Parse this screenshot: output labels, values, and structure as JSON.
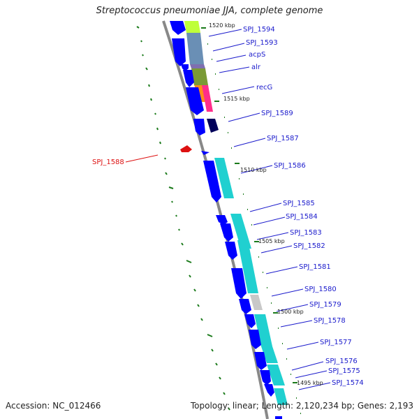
{
  "title": "Streptococcus pneumoniae JJA, complete genome",
  "footer": {
    "accession": "Accession: NC_012466",
    "summary": "Topology: linear; Length: 2,120,234 bp; Genes: 2,193"
  },
  "colors": {
    "backbone": "#888888",
    "gene_blue": "#0000ff",
    "gene_dark_navy": "#00005a",
    "label_blue": "#1a1acc",
    "label_red": "#dd1111",
    "tick_green": "#1a7a1a"
  },
  "scale_labels": [
    "1520 kbp",
    "1515 kbp",
    "1510 kbp",
    "1505 kbp",
    "1500 kbp",
    "1495 kbp"
  ],
  "gene_labels": [
    {
      "text": "SPJ_1594"
    },
    {
      "text": "SPJ_1593"
    },
    {
      "text": "acpS"
    },
    {
      "text": "alr"
    },
    {
      "text": "recG"
    },
    {
      "text": "SPJ_1589"
    },
    {
      "text": "SPJ_1587"
    },
    {
      "text": "SPJ_1586"
    },
    {
      "text": "SPJ_1585"
    },
    {
      "text": "SPJ_1584"
    },
    {
      "text": "SPJ_1583"
    },
    {
      "text": "SPJ_1582"
    },
    {
      "text": "SPJ_1581"
    },
    {
      "text": "SPJ_1580"
    },
    {
      "text": "SPJ_1579"
    },
    {
      "text": "SPJ_1578"
    },
    {
      "text": "SPJ_1577"
    },
    {
      "text": "SPJ_1576"
    },
    {
      "text": "SPJ_1575"
    },
    {
      "text": "SPJ_1574"
    }
  ],
  "left_label": {
    "text": "SPJ_1588"
  }
}
